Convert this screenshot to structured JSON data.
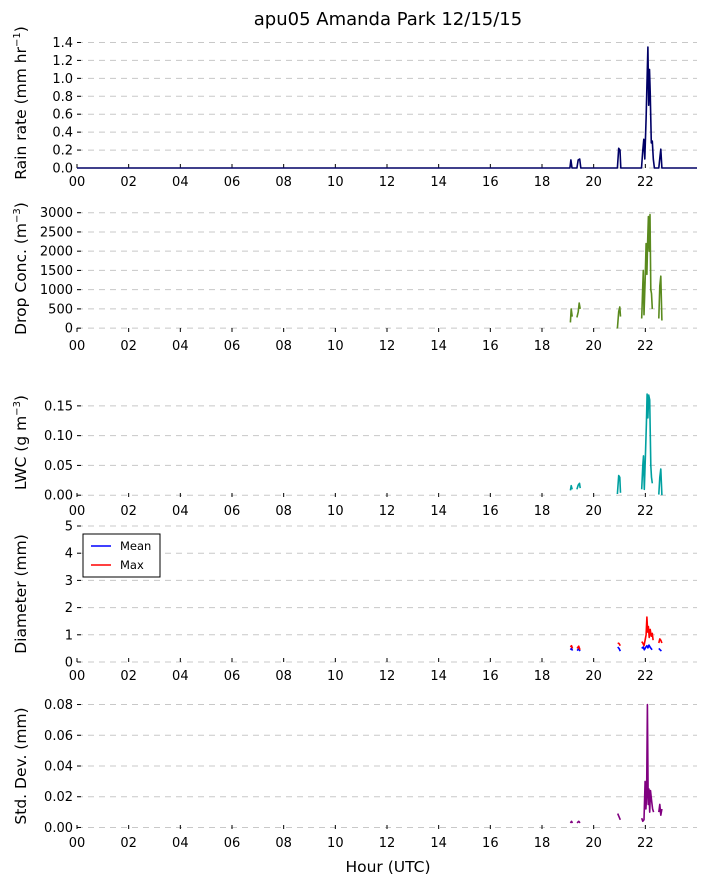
{
  "title": "apu05 Amanda Park 12/15/15",
  "x_axis": {
    "label": "Hour (UTC)",
    "range": [
      0,
      24
    ],
    "ticks": [
      0,
      2,
      4,
      6,
      8,
      10,
      12,
      14,
      16,
      18,
      20,
      22
    ],
    "tick_labels": [
      "00",
      "02",
      "04",
      "06",
      "08",
      "10",
      "12",
      "14",
      "16",
      "18",
      "20",
      "22"
    ]
  },
  "legend": {
    "placement": "upper-left",
    "panel": "diameter",
    "entries": [
      "Mean",
      "Max"
    ]
  },
  "chart_data": [
    {
      "id": "rain",
      "type": "line",
      "ylabel": "Rain rate (mm hr$^{-1}$)",
      "ylabel_parts": [
        "Rain rate (mm hr",
        "−1",
        ")"
      ],
      "ylim": [
        0,
        1.45
      ],
      "yticks": [
        0,
        0.2,
        0.4,
        0.6,
        0.8,
        1.0,
        1.2,
        1.4
      ],
      "ytick_labels": [
        "0.0",
        "0.2",
        "0.4",
        "0.6",
        "0.8",
        "1.0",
        "1.2",
        "1.4"
      ],
      "grid": true,
      "series": [
        {
          "color": "#000066",
          "segments": [
            [
              [
                0,
                0
              ],
              [
                19.08,
                0
              ],
              [
                19.12,
                0.09
              ],
              [
                19.16,
                0
              ],
              [
                19.35,
                0
              ],
              [
                19.4,
                0.09
              ],
              [
                19.46,
                0.1
              ],
              [
                19.5,
                0
              ],
              [
                20.92,
                0
              ],
              [
                20.97,
                0.22
              ],
              [
                21.02,
                0.2
              ],
              [
                21.05,
                0
              ],
              [
                21.85,
                0
              ],
              [
                21.9,
                0.2
              ],
              [
                21.94,
                0.32
              ],
              [
                21.98,
                0.1
              ],
              [
                22.03,
                0.55
              ],
              [
                22.07,
                1.0
              ],
              [
                22.1,
                1.35
              ],
              [
                22.13,
                0.7
              ],
              [
                22.16,
                1.1
              ],
              [
                22.19,
                0.85
              ],
              [
                22.23,
                0.28
              ],
              [
                22.27,
                0.3
              ],
              [
                22.31,
                0.1
              ],
              [
                22.35,
                0
              ],
              [
                22.52,
                0
              ],
              [
                22.57,
                0.14
              ],
              [
                22.6,
                0.21
              ],
              [
                22.64,
                0
              ],
              [
                24,
                0
              ]
            ]
          ]
        }
      ]
    },
    {
      "id": "drop_conc",
      "type": "line",
      "ylabel": "Drop Conc. (m$^{-3}$)",
      "ylabel_parts": [
        "Drop Conc. (m",
        "−3",
        ")"
      ],
      "ylim": [
        -100,
        3200
      ],
      "yticks": [
        0,
        500,
        1000,
        1500,
        2000,
        2500,
        3000
      ],
      "ytick_labels": [
        "0",
        "500",
        "1000",
        "1500",
        "2000",
        "2500",
        "3000"
      ],
      "grid": true,
      "series": [
        {
          "color": "#5a8a1e",
          "segments": [
            [
              [
                19.1,
                150
              ],
              [
                19.13,
                500
              ],
              [
                19.17,
                300
              ]
            ],
            [
              [
                19.35,
                280
              ],
              [
                19.4,
                420
              ],
              [
                19.44,
                650
              ],
              [
                19.48,
                500
              ]
            ],
            [
              [
                20.92,
                -10
              ],
              [
                20.97,
                430
              ],
              [
                21.01,
                550
              ],
              [
                21.04,
                300
              ]
            ],
            [
              [
                21.86,
                250
              ],
              [
                21.89,
                900
              ],
              [
                21.92,
                1500
              ],
              [
                21.95,
                350
              ],
              [
                21.99,
                1200
              ],
              [
                22.03,
                2200
              ],
              [
                22.06,
                1400
              ],
              [
                22.09,
                2300
              ],
              [
                22.12,
                2900
              ],
              [
                22.15,
                2000
              ],
              [
                22.18,
                2950
              ],
              [
                22.21,
                1000
              ],
              [
                22.24,
                900
              ],
              [
                22.27,
                500
              ]
            ],
            [
              [
                22.52,
                250
              ],
              [
                22.56,
                1100
              ],
              [
                22.6,
                1350
              ],
              [
                22.64,
                200
              ]
            ]
          ]
        }
      ]
    },
    {
      "id": "lwc",
      "type": "line",
      "ylabel": "LWC (g m$^{-3}$)",
      "ylabel_parts": [
        "LWC (g m",
        "−3",
        ")"
      ],
      "ylim": [
        -0.003,
        0.18
      ],
      "yticks": [
        0,
        0.05,
        0.1,
        0.15
      ],
      "ytick_labels": [
        "0.00",
        "0.05",
        "0.10",
        "0.15"
      ],
      "grid": true,
      "series": [
        {
          "color": "#00a0a0",
          "segments": [
            [
              [
                19.1,
                0.008
              ],
              [
                19.13,
                0.016
              ],
              [
                19.17,
                0.01
              ]
            ],
            [
              [
                19.35,
                0.01
              ],
              [
                19.4,
                0.017
              ],
              [
                19.45,
                0.02
              ],
              [
                19.48,
                0.012
              ]
            ],
            [
              [
                20.92,
                0.002
              ],
              [
                20.97,
                0.033
              ],
              [
                21.01,
                0.03
              ],
              [
                21.04,
                0.004
              ]
            ],
            [
              [
                21.86,
                0.01
              ],
              [
                21.9,
                0.05
              ],
              [
                21.93,
                0.066
              ],
              [
                21.96,
                0.01
              ],
              [
                22.0,
                0.06
              ],
              [
                22.04,
                0.12
              ],
              [
                22.07,
                0.17
              ],
              [
                22.1,
                0.13
              ],
              [
                22.13,
                0.168
              ],
              [
                22.17,
                0.16
              ],
              [
                22.21,
                0.05
              ],
              [
                22.24,
                0.03
              ],
              [
                22.27,
                0.02
              ]
            ],
            [
              [
                22.52,
                0.001
              ],
              [
                22.56,
                0.03
              ],
              [
                22.6,
                0.044
              ],
              [
                22.64,
                0.0
              ]
            ]
          ]
        }
      ]
    },
    {
      "id": "diameter",
      "type": "line",
      "ylabel": "Diameter (mm)",
      "ylim": [
        0,
        5
      ],
      "yticks": [
        0,
        1,
        2,
        3,
        4,
        5
      ],
      "ytick_labels": [
        "0",
        "1",
        "2",
        "3",
        "4",
        "5"
      ],
      "grid": true,
      "series": [
        {
          "name": "Mean",
          "color": "#0000ff",
          "segments": [
            [
              [
                19.1,
                0.45
              ],
              [
                19.14,
                0.5
              ],
              [
                19.18,
                0.42
              ]
            ],
            [
              [
                19.36,
                0.42
              ],
              [
                19.42,
                0.48
              ],
              [
                19.47,
                0.4
              ]
            ],
            [
              [
                20.93,
                0.55
              ],
              [
                20.98,
                0.5
              ],
              [
                21.03,
                0.4
              ]
            ],
            [
              [
                21.86,
                0.5
              ],
              [
                21.92,
                0.55
              ],
              [
                21.96,
                0.45
              ],
              [
                22.02,
                0.55
              ],
              [
                22.06,
                0.6
              ],
              [
                22.1,
                0.52
              ],
              [
                22.14,
                0.62
              ],
              [
                22.18,
                0.55
              ],
              [
                22.22,
                0.5
              ],
              [
                22.26,
                0.45
              ]
            ],
            [
              [
                22.52,
                0.5
              ],
              [
                22.57,
                0.45
              ],
              [
                22.62,
                0.4
              ]
            ]
          ]
        },
        {
          "name": "Max",
          "color": "#ff0000",
          "segments": [
            [
              [
                19.1,
                0.55
              ],
              [
                19.14,
                0.6
              ],
              [
                19.18,
                0.5
              ]
            ],
            [
              [
                19.36,
                0.5
              ],
              [
                19.42,
                0.58
              ],
              [
                19.47,
                0.45
              ]
            ],
            [
              [
                20.93,
                0.7
              ],
              [
                20.98,
                0.68
              ],
              [
                21.03,
                0.6
              ]
            ],
            [
              [
                21.86,
                0.75
              ],
              [
                21.9,
                0.7
              ],
              [
                21.95,
                0.6
              ],
              [
                21.99,
                0.8
              ],
              [
                22.03,
                1.0
              ],
              [
                22.06,
                1.65
              ],
              [
                22.09,
                1.1
              ],
              [
                22.12,
                1.3
              ],
              [
                22.15,
                0.9
              ],
              [
                22.19,
                1.2
              ],
              [
                22.23,
                0.95
              ],
              [
                22.27,
                1.05
              ],
              [
                22.3,
                0.8
              ]
            ],
            [
              [
                22.52,
                0.7
              ],
              [
                22.56,
                0.85
              ],
              [
                22.6,
                0.8
              ],
              [
                22.64,
                0.7
              ]
            ]
          ]
        }
      ]
    },
    {
      "id": "std_dev",
      "type": "line",
      "ylabel": "Std. Dev. (mm)",
      "ylim": [
        -0.001,
        0.081
      ],
      "yticks": [
        0,
        0.02,
        0.04,
        0.06,
        0.08
      ],
      "ytick_labels": [
        "0.00",
        "0.02",
        "0.04",
        "0.06",
        "0.08"
      ],
      "grid": true,
      "series": [
        {
          "color": "#800080",
          "segments": [
            [
              [
                19.1,
                0.003
              ],
              [
                19.14,
                0.004
              ],
              [
                19.18,
                0.003
              ]
            ],
            [
              [
                19.36,
                0.003
              ],
              [
                19.42,
                0.004
              ],
              [
                19.47,
                0.003
              ]
            ],
            [
              [
                20.93,
                0.009
              ],
              [
                20.98,
                0.007
              ],
              [
                21.03,
                0.005
              ]
            ],
            [
              [
                21.86,
                0.006
              ],
              [
                21.9,
                0.004
              ],
              [
                21.95,
                0.005
              ],
              [
                21.99,
                0.03
              ],
              [
                22.02,
                0.012
              ],
              [
                22.05,
                0.02
              ],
              [
                22.08,
                0.08
              ],
              [
                22.11,
                0.015
              ],
              [
                22.14,
                0.025
              ],
              [
                22.17,
                0.01
              ],
              [
                22.2,
                0.024
              ],
              [
                22.24,
                0.018
              ],
              [
                22.28,
                0.012
              ],
              [
                22.32,
                0.01
              ]
            ],
            [
              [
                22.52,
                0.01
              ],
              [
                22.56,
                0.015
              ],
              [
                22.6,
                0.008
              ],
              [
                22.64,
                0.012
              ]
            ]
          ]
        }
      ]
    }
  ]
}
